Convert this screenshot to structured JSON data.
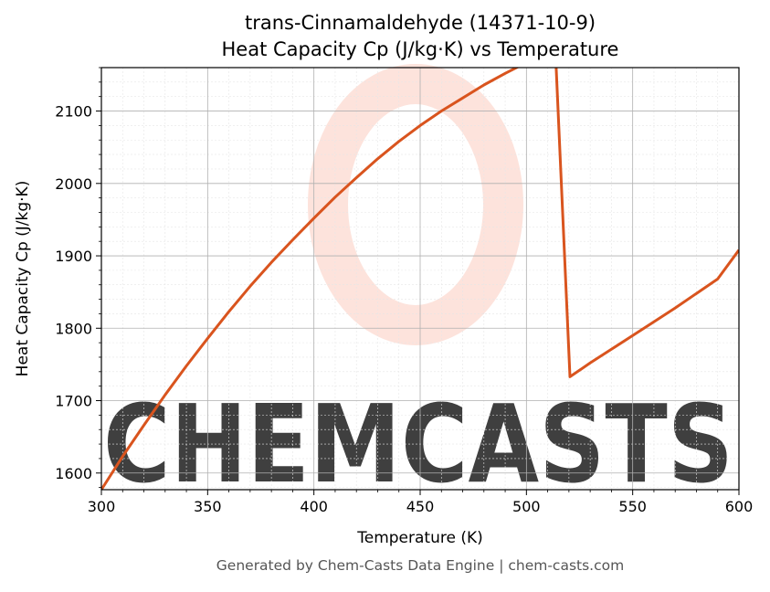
{
  "chart_data": {
    "type": "line",
    "title_line1": "trans-Cinnamaldehyde (14371-10-9)",
    "title_line2": "Heat Capacity Cp (J/kg·K) vs Temperature",
    "xlabel": "Temperature (K)",
    "ylabel": "Heat Capacity Cp (J/kg·K)",
    "xlim": [
      300,
      600
    ],
    "ylim": [
      1577,
      2160
    ],
    "x_ticks": [
      300,
      350,
      400,
      450,
      500,
      550,
      600
    ],
    "y_ticks": [
      1600,
      1700,
      1800,
      1900,
      2000,
      2100
    ],
    "x_tick_labels": [
      "300",
      "350",
      "400",
      "450",
      "500",
      "550",
      "600"
    ],
    "y_tick_labels": [
      "1600",
      "1700",
      "1800",
      "1900",
      "2000",
      "2100"
    ],
    "grid": true,
    "line_color": "#d9541e",
    "series": [
      {
        "x": [
          300,
          310,
          320,
          330,
          340,
          350,
          360,
          370,
          380,
          390,
          400,
          410,
          420,
          430,
          440,
          450,
          460,
          470,
          480,
          490,
          500,
          510,
          514,
          520.5,
          530,
          540,
          550,
          560,
          570,
          580,
          590,
          600
        ],
        "y": [
          1577,
          1623,
          1666,
          1708,
          1748,
          1786,
          1823,
          1858,
          1891,
          1922,
          1952,
          1981,
          2008,
          2034,
          2058,
          2080,
          2100,
          2118,
          2136,
          2152,
          2167,
          2182,
          2160,
          1733,
          1752,
          1771,
          1790,
          1809,
          1828,
          1848,
          1868,
          1908
        ]
      }
    ]
  },
  "watermark": {
    "text": "CHEMCASTS",
    "color": "#fcd9d0"
  },
  "footer": "Generated by Chem-Casts Data Engine | chem-casts.com"
}
